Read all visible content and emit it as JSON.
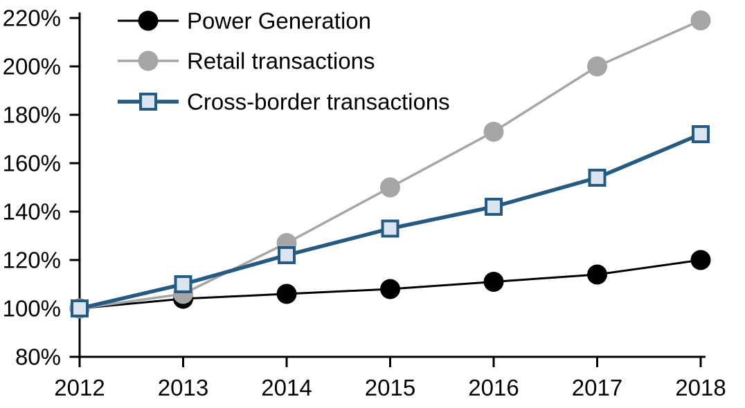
{
  "chart_data": {
    "type": "line",
    "title": "",
    "categories": [
      "2012",
      "2013",
      "2014",
      "2015",
      "2016",
      "2017",
      "2018"
    ],
    "series": [
      {
        "name": "Power Generation",
        "line_color": "#000000",
        "marker": "filled-circle",
        "marker_color": "#000000",
        "values": [
          100,
          104,
          106,
          108,
          111,
          114,
          120
        ]
      },
      {
        "name": "Retail transactions",
        "line_color": "#A6A6A6",
        "marker": "filled-circle",
        "marker_color": "#A6A6A6",
        "values": [
          100,
          106,
          127,
          150,
          173,
          200,
          219
        ]
      },
      {
        "name": "Cross-border transactions",
        "line_color": "#255A83",
        "marker": "outlined-square",
        "marker_color": "#DBE5F1",
        "values": [
          100,
          110,
          122,
          133,
          142,
          154,
          172
        ]
      }
    ],
    "x_axis": {
      "tick_labels": [
        "2012",
        "2013",
        "2014",
        "2015",
        "2016",
        "2017",
        "2018"
      ]
    },
    "y_axis": {
      "min": 80,
      "max": 220,
      "step": 20,
      "unit": "%",
      "tick_labels": [
        "80%",
        "100%",
        "120%",
        "140%",
        "160%",
        "180%",
        "200%",
        "220%"
      ]
    },
    "legend_position": "top-left",
    "grid": false,
    "background_color": "#FFFFFF",
    "axis_color": "#000000"
  }
}
